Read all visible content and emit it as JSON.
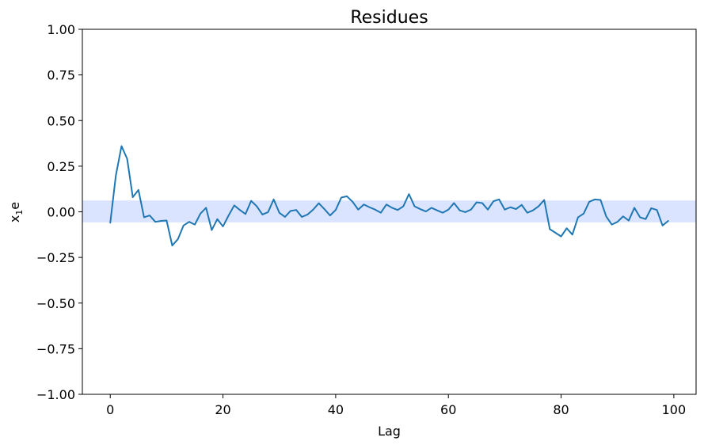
{
  "chart_data": {
    "type": "line",
    "title": "Residues",
    "xlabel": "Lag",
    "ylabel_base": "x",
    "ylabel_sub": "1",
    "ylabel_tail": "e",
    "xlim": [
      -4.95,
      103.95
    ],
    "ylim": [
      -1.0,
      1.0
    ],
    "xticks": [
      0,
      20,
      40,
      60,
      80,
      100
    ],
    "xtick_labels": [
      "0",
      "20",
      "40",
      "60",
      "80",
      "100"
    ],
    "yticks": [
      1.0,
      0.75,
      0.5,
      0.25,
      0.0,
      -0.25,
      -0.5,
      -0.75,
      -1.0
    ],
    "ytick_labels": [
      "1.00",
      "0.75",
      "0.50",
      "0.25",
      "0.00",
      "−0.25",
      "−0.50",
      "−0.75",
      "−1.00"
    ],
    "grid": false,
    "confidence_band": [
      -0.058,
      0.062
    ],
    "colors": {
      "line": "#1f77b4",
      "band": "#dbe4ff"
    },
    "series": [
      {
        "x": [
          0,
          1,
          2,
          3,
          4,
          5,
          6,
          7,
          8,
          9,
          10,
          11,
          12,
          13,
          14,
          15,
          16,
          17,
          18,
          19,
          20,
          21,
          22,
          23,
          24,
          25,
          26,
          27,
          28,
          29,
          30,
          31,
          32,
          33,
          34,
          35,
          36,
          37,
          38,
          39,
          40,
          41,
          42,
          43,
          44,
          45,
          46,
          47,
          48,
          49,
          50,
          51,
          52,
          53,
          54,
          55,
          56,
          57,
          58,
          59,
          60,
          61,
          62,
          63,
          64,
          65,
          66,
          67,
          68,
          69,
          70,
          71,
          72,
          73,
          74,
          75,
          76,
          77,
          78,
          79,
          80,
          81,
          82,
          83,
          84,
          85,
          86,
          87,
          88,
          89,
          90,
          91,
          92,
          93,
          94,
          95,
          96,
          97,
          98,
          99
        ],
        "values": [
          -0.06,
          0.2,
          0.36,
          0.29,
          0.08,
          0.12,
          -0.03,
          -0.02,
          -0.055,
          -0.05,
          -0.048,
          -0.185,
          -0.15,
          -0.075,
          -0.055,
          -0.07,
          -0.01,
          0.022,
          -0.1,
          -0.04,
          -0.08,
          -0.02,
          0.035,
          0.01,
          -0.012,
          0.06,
          0.03,
          -0.015,
          -0.002,
          0.068,
          -0.005,
          -0.028,
          0.005,
          0.01,
          -0.028,
          -0.015,
          0.012,
          0.047,
          0.015,
          -0.02,
          0.01,
          0.078,
          0.085,
          0.055,
          0.012,
          0.04,
          0.025,
          0.012,
          -0.005,
          0.04,
          0.022,
          0.01,
          0.03,
          0.097,
          0.03,
          0.015,
          0.002,
          0.022,
          0.008,
          -0.005,
          0.012,
          0.048,
          0.008,
          -0.002,
          0.012,
          0.052,
          0.048,
          0.012,
          0.058,
          0.068,
          0.012,
          0.025,
          0.015,
          0.038,
          -0.005,
          0.008,
          0.03,
          0.065,
          -0.095,
          -0.115,
          -0.135,
          -0.09,
          -0.125,
          -0.03,
          -0.01,
          0.055,
          0.068,
          0.065,
          -0.025,
          -0.07,
          -0.055,
          -0.025,
          -0.048,
          0.022,
          -0.03,
          -0.04,
          0.02,
          0.01,
          -0.075,
          -0.05
        ]
      }
    ]
  }
}
